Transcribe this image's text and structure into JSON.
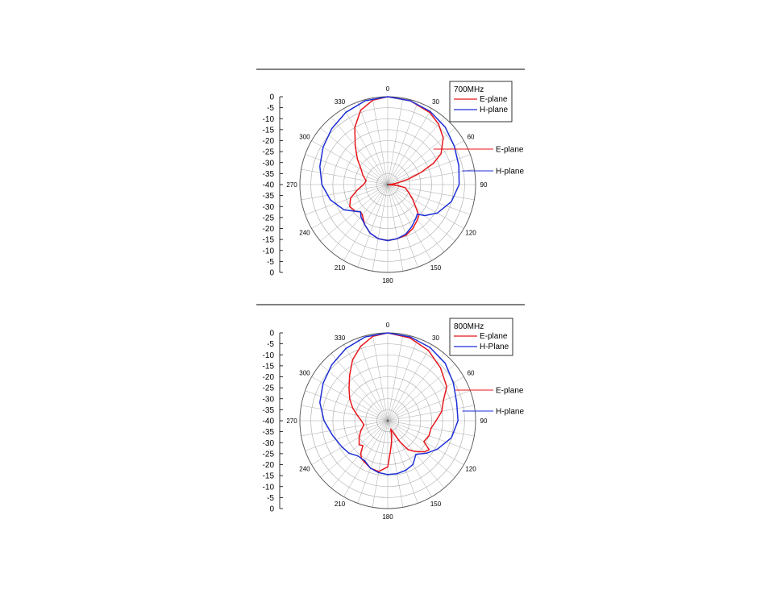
{
  "colors": {
    "e_plane": "#e8161b",
    "h_plane": "#1d2fd6",
    "grid": "#a8a8a8",
    "axis": "#000000"
  },
  "chart_data": [
    {
      "type": "polar-line",
      "title": "700MHz",
      "r_scale_labels": [
        "0",
        "-5",
        "-10",
        "-15",
        "-20",
        "-25",
        "-30",
        "-35",
        "-40",
        "-35",
        "-30",
        "-25",
        "-20",
        "-15",
        "-10",
        "-5",
        "0"
      ],
      "angle_labels": [
        "0",
        "30",
        "60",
        "90",
        "120",
        "150",
        "180",
        "210",
        "240",
        "270",
        "300",
        "330"
      ],
      "rlim_db": [
        -40,
        0
      ],
      "grid": true,
      "legend_position": "top-right",
      "callouts": [
        "E-plane",
        "H-plane"
      ],
      "series": [
        {
          "name": "E-plane",
          "color": "#e8161b",
          "theta": [
            0,
            15,
            30,
            40,
            50,
            60,
            65,
            70,
            75,
            80,
            85,
            90,
            95,
            100,
            110,
            120,
            130,
            135,
            140,
            150,
            160,
            170,
            180,
            190,
            200,
            210,
            220,
            225,
            230,
            240,
            250,
            260,
            270,
            280,
            290,
            300,
            310,
            320,
            330,
            340,
            350,
            360
          ],
          "r_db": [
            0,
            -0.5,
            -2,
            -4,
            -7,
            -12,
            -17,
            -24,
            -30,
            -35,
            -38,
            -40,
            -36,
            -32,
            -30,
            -27,
            -23,
            -20,
            -19,
            -17,
            -15.5,
            -15,
            -14.5,
            -15,
            -16.5,
            -19,
            -22,
            -22.5,
            -21,
            -20,
            -22,
            -26,
            -29,
            -30,
            -28,
            -26,
            -22,
            -17,
            -10,
            -4,
            -1,
            0
          ]
        },
        {
          "name": "H-plane",
          "color": "#1d2fd6",
          "theta": [
            0,
            15,
            30,
            45,
            60,
            75,
            90,
            105,
            120,
            130,
            135,
            140,
            150,
            160,
            170,
            180,
            190,
            200,
            210,
            220,
            225,
            230,
            240,
            255,
            270,
            285,
            300,
            315,
            330,
            345,
            360
          ],
          "r_db": [
            0,
            -0.5,
            -1.5,
            -3,
            -5,
            -6.5,
            -7.5,
            -10,
            -14,
            -18,
            -21,
            -20,
            -18,
            -16,
            -15,
            -14.5,
            -15,
            -16.5,
            -19,
            -21,
            -22.5,
            -21,
            -17,
            -13,
            -10,
            -8,
            -6,
            -4,
            -2,
            -0.5,
            0
          ]
        }
      ]
    },
    {
      "type": "polar-line",
      "title": "800MHz",
      "r_scale_labels": [
        "0",
        "-5",
        "-10",
        "-15",
        "-20",
        "-25",
        "-30",
        "-35",
        "-40",
        "-35",
        "-30",
        "-25",
        "-20",
        "-15",
        "-10",
        "-5",
        "0"
      ],
      "angle_labels": [
        "0",
        "30",
        "60",
        "90",
        "120",
        "150",
        "180",
        "210",
        "240",
        "270",
        "300",
        "330"
      ],
      "rlim_db": [
        -40,
        0
      ],
      "grid": true,
      "legend_position": "top-right",
      "callouts": [
        "E-plane",
        "H-plane"
      ],
      "series": [
        {
          "name": "E-plane",
          "color": "#e8161b",
          "theta": [
            0,
            15,
            30,
            45,
            60,
            70,
            80,
            90,
            100,
            110,
            120,
            125,
            130,
            135,
            140,
            145,
            150,
            155,
            160,
            165,
            170,
            175,
            180,
            190,
            200,
            210,
            215,
            220,
            225,
            230,
            240,
            250,
            260,
            270,
            280,
            290,
            300,
            310,
            320,
            330,
            340,
            350,
            360
          ],
          "r_db": [
            0,
            -1,
            -3,
            -6,
            -9,
            -13,
            -15,
            -18,
            -20,
            -20,
            -21,
            -17,
            -18,
            -20,
            -22,
            -24,
            -29,
            -34,
            -36,
            -33,
            -30,
            -26,
            -19,
            -16.5,
            -17,
            -18.5,
            -19,
            -21,
            -24,
            -23,
            -25,
            -27,
            -29,
            -28,
            -26,
            -23,
            -20,
            -17,
            -13,
            -8,
            -4,
            -1,
            0
          ]
        },
        {
          "name": "H-Plane",
          "color": "#1d2fd6",
          "theta": [
            0,
            15,
            30,
            45,
            60,
            75,
            90,
            105,
            120,
            130,
            140,
            150,
            160,
            170,
            180,
            190,
            200,
            210,
            220,
            230,
            240,
            255,
            270,
            285,
            300,
            315,
            330,
            345,
            360
          ],
          "r_db": [
            0,
            -0.5,
            -1.5,
            -3,
            -5.5,
            -7.5,
            -8,
            -10,
            -14,
            -17,
            -20,
            -17,
            -16,
            -15.5,
            -15.5,
            -16,
            -17,
            -19,
            -19,
            -17,
            -16,
            -14,
            -11,
            -8,
            -6,
            -4,
            -2,
            -0.5,
            0
          ]
        }
      ]
    }
  ]
}
